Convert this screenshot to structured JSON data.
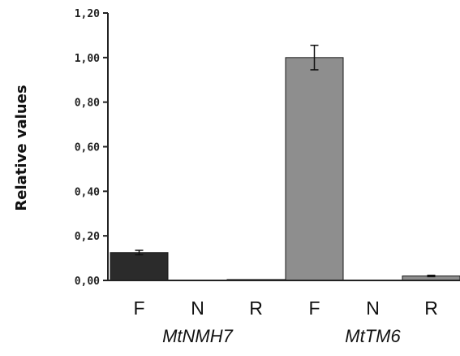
{
  "chart_data": {
    "type": "bar",
    "title": "",
    "ylabel": "Relative values",
    "xlabel": "",
    "ylim": [
      0,
      1.2
    ],
    "yticks": [
      0,
      0.2,
      0.4,
      0.6,
      0.8,
      1.0,
      1.2
    ],
    "ytick_labels": [
      "0,00",
      "0,20",
      "0,40",
      "0,60",
      "0,80",
      "1,00",
      "1,20"
    ],
    "grid": false,
    "categories": [
      "F",
      "N",
      "R",
      "F",
      "N",
      "R"
    ],
    "groups": [
      {
        "label": "MtNMH7",
        "color": "#2b2b2b"
      },
      {
        "label": "MtTM6",
        "color": "#8e8e8e"
      }
    ],
    "bars": [
      {
        "category": "F",
        "group": 0,
        "value": 0.125,
        "error": 0.01
      },
      {
        "category": "N",
        "group": 0,
        "value": 0.0,
        "error": 0
      },
      {
        "category": "R",
        "group": 0,
        "value": 0.004,
        "error": 0
      },
      {
        "category": "F",
        "group": 1,
        "value": 1.0,
        "error": 0.055
      },
      {
        "category": "N",
        "group": 1,
        "value": 0.0,
        "error": 0
      },
      {
        "category": "R",
        "group": 1,
        "value": 0.02,
        "error": 0.003
      }
    ]
  }
}
